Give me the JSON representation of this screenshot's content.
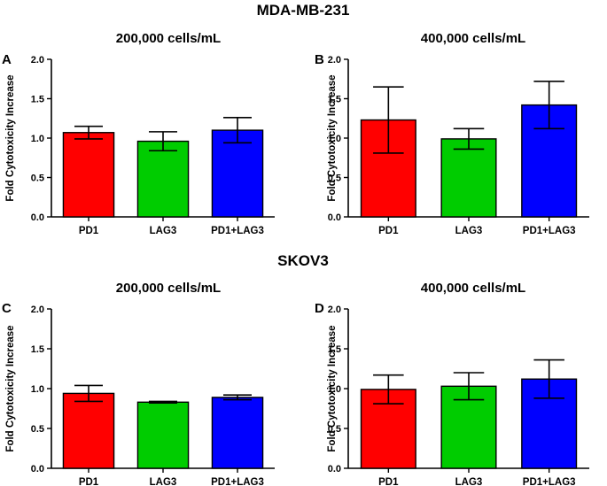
{
  "figure": {
    "groups": [
      {
        "title": "MDA-MB-231"
      },
      {
        "title": "SKOV3"
      }
    ]
  },
  "chart_data": [
    {
      "panel": "A",
      "type": "bar",
      "title": "200,000 cells/mL",
      "ylabel": "Fold Cytotoxicity Increase",
      "xlabel": "",
      "categories": [
        "PD1",
        "LAG3",
        "PD1+LAG3"
      ],
      "values": [
        1.07,
        0.96,
        1.1
      ],
      "error": [
        0.08,
        0.12,
        0.16
      ],
      "colors": [
        "#ff0000",
        "#00cc00",
        "#0000ff"
      ],
      "ylim": [
        0,
        2.0
      ],
      "yticks": [
        "0.0",
        "0.5",
        "1.0",
        "1.5",
        "2.0"
      ],
      "grid": false
    },
    {
      "panel": "B",
      "type": "bar",
      "title": "400,000 cells/mL",
      "ylabel": "Fold Cytotoxicity Increase",
      "xlabel": "",
      "categories": [
        "PD1",
        "LAG3",
        "PD1+LAG3"
      ],
      "values": [
        1.23,
        0.99,
        1.42
      ],
      "error": [
        0.42,
        0.13,
        0.3
      ],
      "colors": [
        "#ff0000",
        "#00cc00",
        "#0000ff"
      ],
      "ylim": [
        0,
        2.0
      ],
      "yticks": [
        "0.0",
        "0.5",
        "1.0",
        "1.5",
        "2.0"
      ],
      "grid": false
    },
    {
      "panel": "C",
      "type": "bar",
      "title": "200,000 cells/mL",
      "ylabel": "Fold Cytotoxicity Increase",
      "xlabel": "",
      "categories": [
        "PD1",
        "LAG3",
        "PD1+LAG3"
      ],
      "values": [
        0.94,
        0.83,
        0.89
      ],
      "error": [
        0.1,
        0.01,
        0.03
      ],
      "colors": [
        "#ff0000",
        "#00cc00",
        "#0000ff"
      ],
      "ylim": [
        0,
        2.0
      ],
      "yticks": [
        "0.0",
        "0.5",
        "1.0",
        "1.5",
        "2.0"
      ],
      "grid": false
    },
    {
      "panel": "D",
      "type": "bar",
      "title": "400,000 cells/mL",
      "ylabel": "Fold Cytotoxicity Increase",
      "xlabel": "",
      "categories": [
        "PD1",
        "LAG3",
        "PD1+LAG3"
      ],
      "values": [
        0.99,
        1.03,
        1.12
      ],
      "error": [
        0.18,
        0.17,
        0.24
      ],
      "colors": [
        "#ff0000",
        "#00cc00",
        "#0000ff"
      ],
      "ylim": [
        0,
        2.0
      ],
      "yticks": [
        "0.0",
        "0.5",
        "1.0",
        "1.5",
        "2.0"
      ],
      "grid": false
    }
  ]
}
